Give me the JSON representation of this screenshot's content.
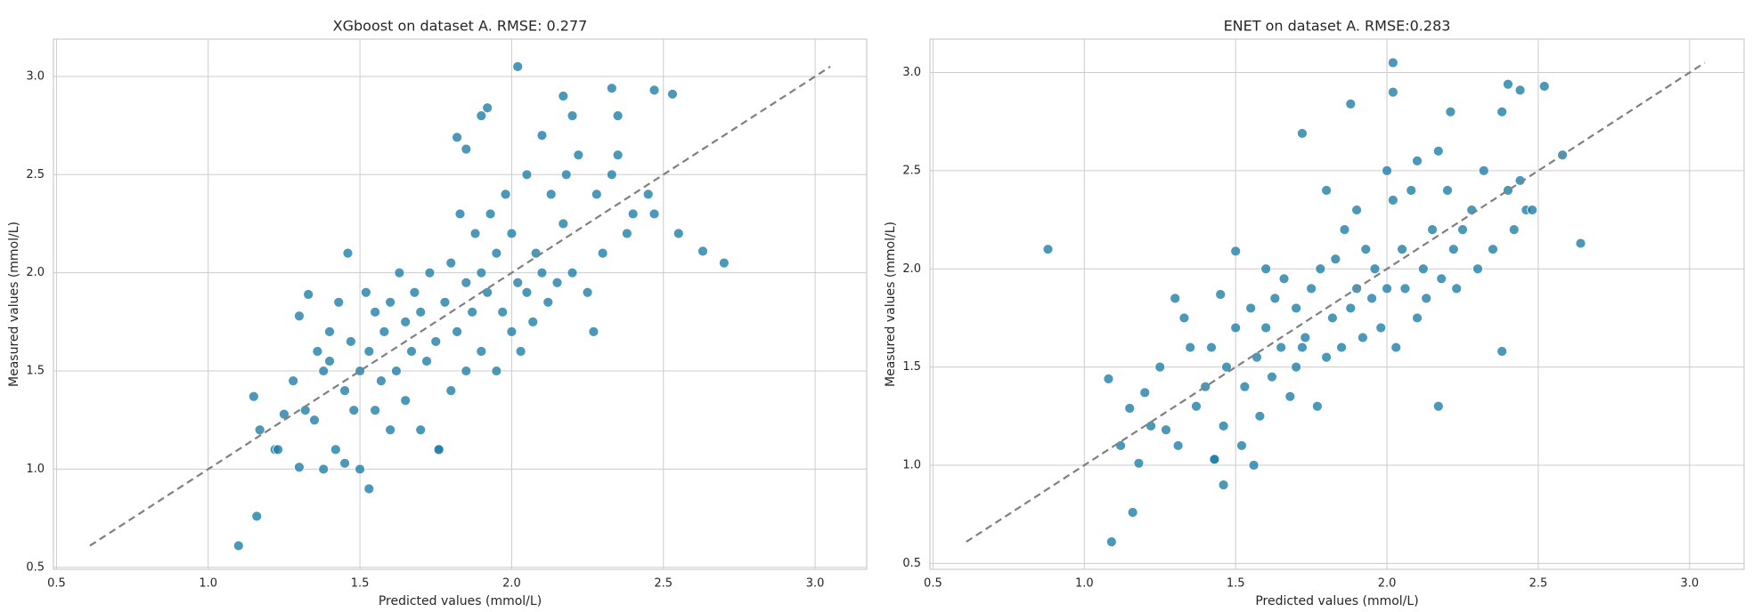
{
  "chart_data": [
    {
      "type": "scatter",
      "title": "XGboost on dataset A. RMSE: 0.277",
      "x_label": "Predicted values (mmol/L)",
      "y_label": "Measured values (mmol/L)",
      "color": "#1f7ea8",
      "grid": true,
      "xlim": [
        0.49,
        3.17
      ],
      "ylim": [
        0.49,
        3.19
      ],
      "xticks": [
        0.5,
        {
          "value": 1,
          "label": "1.0"
        },
        1.5,
        {
          "value": 2,
          "label": "2.0"
        },
        2.5,
        {
          "value": 3,
          "label": "3.0"
        }
      ],
      "yticks": [
        0.5,
        {
          "value": 1,
          "label": "1.0"
        },
        1.5,
        {
          "value": 2,
          "label": "2.0"
        },
        2.5,
        {
          "value": 3,
          "label": "3.0"
        }
      ],
      "reference_line": {
        "x": [
          0.61,
          3.05
        ],
        "y": [
          0.61,
          3.05
        ],
        "color": "#808080",
        "style": "dashed"
      },
      "x": [
        1.1,
        1.16,
        1.15,
        1.17,
        1.22,
        1.23,
        1.25,
        1.28,
        1.3,
        1.3,
        1.32,
        1.33,
        1.35,
        1.36,
        1.38,
        1.38,
        1.4,
        1.4,
        1.42,
        1.43,
        1.45,
        1.45,
        1.46,
        1.47,
        1.48,
        1.5,
        1.5,
        1.52,
        1.53,
        1.53,
        1.55,
        1.55,
        1.57,
        1.58,
        1.6,
        1.6,
        1.62,
        1.63,
        1.65,
        1.65,
        1.67,
        1.68,
        1.7,
        1.7,
        1.72,
        1.73,
        1.75,
        1.76,
        1.78,
        1.8,
        1.8,
        1.82,
        1.83,
        1.85,
        1.85,
        1.87,
        1.88,
        1.9,
        1.9,
        1.92,
        1.93,
        1.95,
        1.95,
        1.97,
        1.98,
        2.0,
        2.0,
        2.02,
        2.03,
        2.05,
        2.05,
        2.07,
        2.08,
        2.1,
        2.1,
        2.12,
        2.13,
        2.15,
        2.17,
        2.18,
        2.2,
        2.22,
        2.25,
        2.27,
        2.28,
        2.3,
        2.33,
        2.35,
        2.38,
        2.4,
        2.45,
        2.47,
        2.53,
        2.55,
        2.63,
        2.7,
        1.82,
        1.92,
        2.02,
        2.17,
        2.33,
        1.76,
        2.47,
        1.9,
        2.2,
        2.35,
        1.85
      ],
      "y": [
        0.61,
        0.76,
        1.37,
        1.2,
        1.1,
        1.1,
        1.28,
        1.45,
        1.01,
        1.78,
        1.3,
        1.89,
        1.25,
        1.6,
        1.0,
        1.5,
        1.55,
        1.7,
        1.1,
        1.85,
        1.03,
        1.4,
        2.1,
        1.65,
        1.3,
        1.0,
        1.5,
        1.9,
        0.9,
        1.6,
        1.3,
        1.8,
        1.45,
        1.7,
        1.2,
        1.85,
        1.5,
        2.0,
        1.35,
        1.75,
        1.6,
        1.9,
        1.2,
        1.8,
        1.55,
        2.0,
        1.65,
        1.1,
        1.85,
        1.4,
        2.05,
        1.7,
        2.3,
        1.5,
        1.95,
        1.8,
        2.2,
        1.6,
        2.0,
        1.9,
        2.3,
        1.5,
        2.1,
        1.8,
        2.4,
        1.7,
        2.2,
        1.95,
        1.6,
        1.9,
        2.5,
        1.75,
        2.1,
        2.0,
        2.7,
        1.85,
        2.4,
        1.95,
        2.25,
        2.5,
        2.0,
        2.6,
        1.9,
        1.7,
        2.4,
        2.1,
        2.5,
        2.6,
        2.2,
        2.3,
        2.4,
        2.3,
        2.91,
        2.2,
        2.11,
        2.05,
        2.69,
        2.84,
        3.05,
        2.9,
        2.94,
        1.1,
        2.93,
        2.8,
        2.8,
        2.8,
        2.63
      ]
    },
    {
      "type": "scatter",
      "title": "ENET on dataset A. RMSE:0.283",
      "x_label": "Predicted values (mmol/L)",
      "y_label": "Measured values (mmol/L)",
      "color": "#1f7ea8",
      "grid": true,
      "xlim": [
        0.49,
        3.18
      ],
      "ylim": [
        0.47,
        3.17
      ],
      "xticks": [
        0.5,
        {
          "value": 1,
          "label": "1.0"
        },
        1.5,
        {
          "value": 2,
          "label": "2.0"
        },
        2.5,
        {
          "value": 3,
          "label": "3.0"
        }
      ],
      "yticks": [
        0.5,
        {
          "value": 1,
          "label": "1.0"
        },
        1.5,
        {
          "value": 2,
          "label": "2.0"
        },
        2.5,
        {
          "value": 3,
          "label": "3.0"
        }
      ],
      "reference_line": {
        "x": [
          0.61,
          3.05
        ],
        "y": [
          0.61,
          3.05
        ],
        "color": "#808080",
        "style": "dashed"
      },
      "x": [
        0.88,
        1.09,
        1.16,
        1.08,
        1.12,
        1.15,
        1.18,
        1.2,
        1.22,
        1.25,
        1.27,
        1.3,
        1.31,
        1.33,
        1.35,
        1.37,
        1.4,
        1.42,
        1.43,
        1.45,
        1.46,
        1.47,
        1.5,
        1.5,
        1.52,
        1.53,
        1.55,
        1.56,
        1.57,
        1.58,
        1.6,
        1.6,
        1.62,
        1.63,
        1.65,
        1.66,
        1.68,
        1.7,
        1.7,
        1.72,
        1.73,
        1.75,
        1.77,
        1.78,
        1.8,
        1.8,
        1.82,
        1.83,
        1.85,
        1.86,
        1.88,
        1.9,
        1.9,
        1.92,
        1.93,
        1.95,
        1.96,
        1.98,
        2.0,
        2.0,
        2.02,
        2.03,
        2.05,
        2.06,
        2.08,
        2.1,
        2.1,
        2.12,
        2.13,
        2.15,
        2.17,
        2.18,
        2.2,
        2.22,
        2.23,
        2.25,
        2.28,
        2.3,
        2.32,
        2.35,
        2.38,
        2.4,
        2.42,
        2.44,
        2.46,
        2.48,
        2.52,
        2.58,
        2.64,
        2.38,
        2.17,
        2.02,
        2.02,
        1.88,
        1.72,
        2.21,
        2.44,
        1.46,
        1.43,
        2.4
      ],
      "y": [
        2.1,
        0.61,
        0.76,
        1.44,
        1.1,
        1.29,
        1.01,
        1.37,
        1.2,
        1.5,
        1.18,
        1.85,
        1.1,
        1.75,
        1.6,
        1.3,
        1.4,
        1.6,
        1.03,
        1.87,
        1.2,
        1.5,
        2.09,
        1.7,
        1.1,
        1.4,
        1.8,
        1.0,
        1.55,
        1.25,
        1.7,
        2.0,
        1.45,
        1.85,
        1.6,
        1.95,
        1.35,
        1.8,
        1.5,
        1.6,
        1.65,
        1.9,
        1.3,
        2.0,
        1.55,
        2.4,
        1.75,
        2.05,
        1.6,
        2.2,
        1.8,
        1.9,
        2.3,
        1.65,
        2.1,
        1.85,
        2.0,
        1.7,
        2.5,
        1.9,
        2.35,
        1.6,
        2.1,
        1.9,
        2.4,
        1.75,
        2.55,
        2.0,
        1.85,
        2.2,
        2.6,
        1.95,
        2.4,
        2.1,
        1.9,
        2.2,
        2.3,
        2.0,
        2.5,
        2.1,
        2.8,
        2.4,
        2.2,
        2.45,
        2.3,
        2.3,
        2.93,
        2.58,
        2.13,
        1.58,
        1.3,
        3.05,
        2.9,
        2.84,
        2.69,
        2.8,
        2.91,
        0.9,
        1.03,
        2.94
      ]
    }
  ]
}
